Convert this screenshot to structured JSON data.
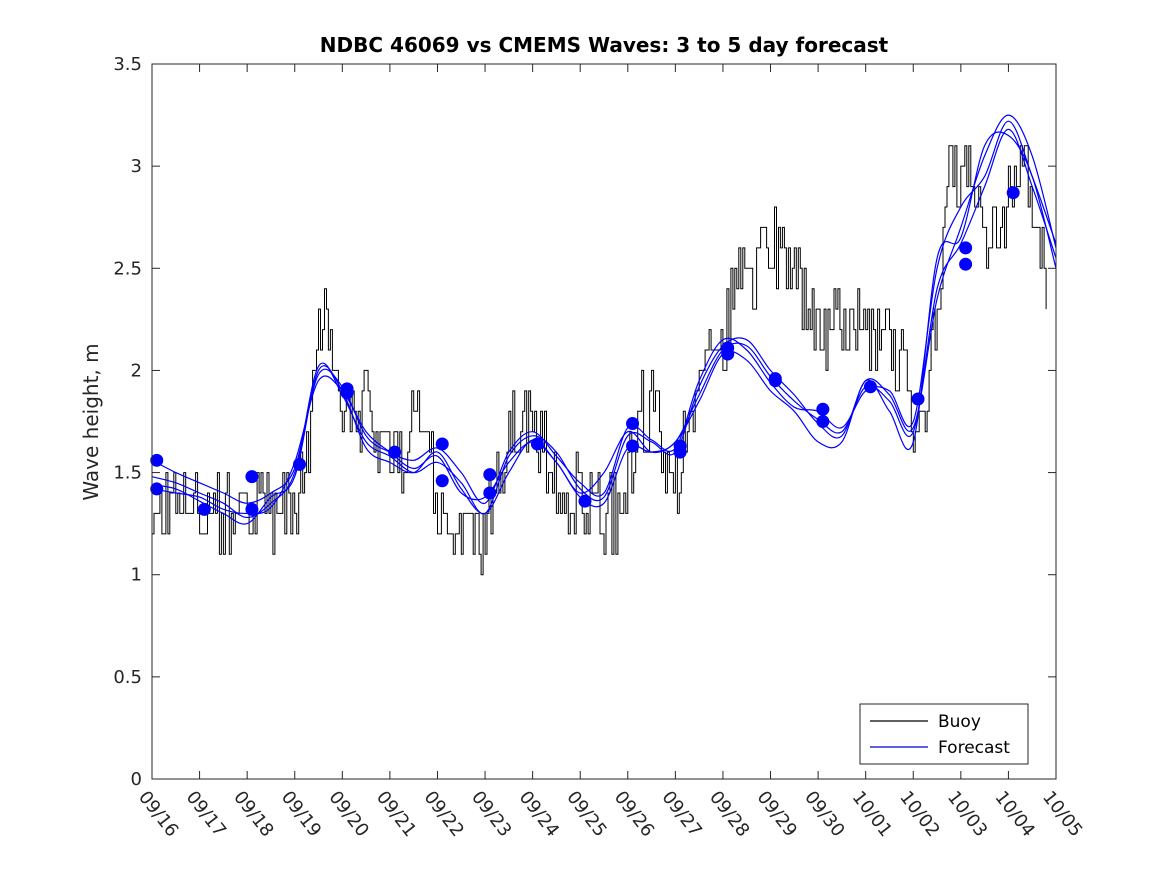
{
  "chart_data": {
    "type": "line",
    "title": "NDBC 46069 vs CMEMS Waves: 3 to 5 day forecast",
    "xlabel": "",
    "ylabel": "Wave height, m",
    "xlim": [
      0,
      19
    ],
    "ylim": [
      0,
      3.5
    ],
    "x_ticks": [
      0,
      1,
      2,
      3,
      4,
      5,
      6,
      7,
      8,
      9,
      10,
      11,
      12,
      13,
      14,
      15,
      16,
      17,
      18,
      19
    ],
    "x_tick_labels": [
      "09/16",
      "09/17",
      "09/18",
      "09/19",
      "09/20",
      "09/21",
      "09/22",
      "09/23",
      "09/24",
      "09/25",
      "09/26",
      "09/27",
      "09/28",
      "09/29",
      "09/30",
      "10/01",
      "10/02",
      "10/03",
      "10/04",
      "10/05"
    ],
    "y_ticks": [
      0,
      0.5,
      1,
      1.5,
      2,
      2.5,
      3,
      3.5
    ],
    "y_tick_labels": [
      "0",
      "0.5",
      "1",
      "1.5",
      "2",
      "2.5",
      "3",
      "3.5"
    ],
    "legend": {
      "position": "bottom-right",
      "entries": [
        {
          "label": "Buoy",
          "color": "#000000"
        },
        {
          "label": "Forecast",
          "color": "#0000cc"
        }
      ]
    },
    "buoy_color": "#000000",
    "forecast_color": "#0000ff",
    "buoy_anchors": {
      "x": [
        0,
        0.1,
        0.2,
        0.5,
        1,
        1.5,
        2,
        2.5,
        3,
        3.3,
        3.6,
        3.8,
        4,
        4.3,
        4.7,
        5,
        5.3,
        5.6,
        5.8,
        6,
        6.3,
        6.6,
        7,
        7.3,
        7.6,
        8,
        8.2,
        8.5,
        8.8,
        9,
        9.3,
        9.6,
        9.9,
        10.2,
        10.5,
        10.8,
        11,
        11.3,
        11.6,
        12,
        12.3,
        12.6,
        12.9,
        13.2,
        13.5,
        13.8,
        14,
        14.3,
        14.6,
        14.9,
        15.2,
        15.5,
        15.8,
        16,
        16.3,
        16.6,
        16.8,
        17,
        17.3,
        17.6,
        17.9,
        18.2,
        18.5,
        18.8
      ],
      "y": [
        1.3,
        1.2,
        1.3,
        1.4,
        1.35,
        1.3,
        1.3,
        1.3,
        1.3,
        1.7,
        2.4,
        2.2,
        1.9,
        1.85,
        1.7,
        1.6,
        1.55,
        1.8,
        1.6,
        1.3,
        1.2,
        1.3,
        1.2,
        1.5,
        1.7,
        1.8,
        1.65,
        1.5,
        1.4,
        1.35,
        1.35,
        1.3,
        1.35,
        1.8,
        1.85,
        1.6,
        1.45,
        1.8,
        2.0,
        2.1,
        2.5,
        2.5,
        2.6,
        2.55,
        2.5,
        2.35,
        2.1,
        2.2,
        2.25,
        2.2,
        2.2,
        2.15,
        2.0,
        1.7,
        1.9,
        2.6,
        3.0,
        2.9,
        2.85,
        2.6,
        2.75,
        3.1,
        2.8,
        2.5
      ]
    },
    "forecast_series": [
      {
        "name": "Forecast run 1",
        "x": [
          0,
          0.5,
          1,
          1.5,
          2,
          2.5,
          3,
          3.5,
          4,
          4.5,
          5,
          5.5,
          6,
          6.5,
          7,
          7.5,
          8,
          8.5,
          9,
          9.5,
          10,
          10.5,
          11,
          11.5,
          12,
          12.5,
          13,
          13.5,
          14,
          14.5,
          15,
          15.5,
          16,
          16.5,
          17,
          17.5,
          18,
          18.5,
          19
        ],
        "y": [
          1.42,
          1.4,
          1.38,
          1.32,
          1.3,
          1.33,
          1.55,
          1.95,
          1.9,
          1.7,
          1.6,
          1.52,
          1.58,
          1.4,
          1.38,
          1.55,
          1.65,
          1.55,
          1.38,
          1.35,
          1.62,
          1.6,
          1.65,
          1.88,
          2.1,
          2.12,
          1.97,
          1.85,
          1.76,
          1.7,
          1.92,
          1.85,
          1.7,
          2.4,
          2.62,
          2.9,
          3.18,
          2.9,
          2.55
        ]
      },
      {
        "name": "Forecast run 2",
        "x": [
          0,
          0.5,
          1,
          1.5,
          2,
          2.5,
          3,
          3.5,
          4,
          4.5,
          5,
          5.5,
          6,
          6.5,
          7,
          7.5,
          8,
          8.5,
          9,
          9.5,
          10,
          10.5,
          11,
          11.5,
          12,
          12.5,
          13,
          13.5,
          14,
          14.5,
          15,
          15.5,
          16,
          16.5,
          17,
          17.5,
          18,
          18.5,
          19
        ],
        "y": [
          1.56,
          1.5,
          1.45,
          1.4,
          1.35,
          1.4,
          1.52,
          1.98,
          1.92,
          1.68,
          1.6,
          1.56,
          1.62,
          1.5,
          1.35,
          1.6,
          1.7,
          1.58,
          1.45,
          1.4,
          1.72,
          1.66,
          1.62,
          1.95,
          2.15,
          2.1,
          1.94,
          1.82,
          1.8,
          1.72,
          1.9,
          1.9,
          1.75,
          2.5,
          2.8,
          2.95,
          3.22,
          2.95,
          2.62
        ]
      },
      {
        "name": "Forecast run 3",
        "x": [
          0,
          0.5,
          1,
          1.5,
          2,
          2.5,
          3,
          3.5,
          4,
          4.5,
          5,
          5.5,
          6,
          6.5,
          7,
          7.5,
          8,
          8.5,
          9,
          9.5,
          10,
          10.5,
          11,
          11.5,
          12,
          12.5,
          13,
          13.5,
          14,
          14.5,
          15,
          15.5,
          16,
          16.5,
          17,
          17.5,
          18,
          18.5,
          19
        ],
        "y": [
          1.48,
          1.45,
          1.4,
          1.35,
          1.28,
          1.35,
          1.5,
          2.02,
          1.88,
          1.65,
          1.58,
          1.5,
          1.55,
          1.45,
          1.3,
          1.58,
          1.68,
          1.6,
          1.42,
          1.38,
          1.68,
          1.65,
          1.6,
          1.92,
          2.12,
          2.15,
          2.0,
          1.88,
          1.74,
          1.68,
          1.95,
          1.88,
          1.72,
          2.35,
          2.7,
          3.05,
          3.25,
          3.05,
          2.6
        ]
      },
      {
        "name": "Forecast run 4",
        "x": [
          0,
          0.5,
          1,
          1.5,
          2,
          2.5,
          3,
          3.5,
          4,
          4.5,
          5,
          5.5,
          6,
          6.5,
          7,
          7.5,
          8,
          8.5,
          9,
          9.5,
          10,
          10.5,
          11,
          11.5,
          12,
          12.5,
          13,
          13.5,
          14,
          14.5,
          15,
          15.5,
          16,
          16.5,
          17,
          17.5,
          18,
          18.5,
          19
        ],
        "y": [
          1.44,
          1.42,
          1.36,
          1.3,
          1.25,
          1.38,
          1.48,
          2.0,
          1.9,
          1.62,
          1.55,
          1.5,
          1.6,
          1.42,
          1.3,
          1.5,
          1.66,
          1.55,
          1.4,
          1.5,
          1.7,
          1.6,
          1.65,
          1.85,
          2.08,
          2.05,
          1.9,
          1.8,
          1.65,
          1.65,
          1.95,
          1.8,
          1.65,
          2.55,
          2.65,
          3.1,
          3.15,
          2.95,
          2.5
        ]
      }
    ],
    "forecast_markers": {
      "x": [
        0.1,
        0.1,
        1.1,
        2.1,
        2.1,
        3.1,
        4.1,
        4.1,
        5.1,
        6.1,
        6.1,
        7.1,
        7.1,
        8.1,
        9.1,
        10.1,
        10.1,
        11.1,
        11.1,
        12.1,
        12.1,
        13.1,
        13.1,
        14.1,
        14.1,
        15.1,
        16.1,
        17.1,
        17.1,
        18.1
      ],
      "y": [
        1.56,
        1.42,
        1.32,
        1.48,
        1.32,
        1.54,
        1.91,
        1.89,
        1.6,
        1.64,
        1.46,
        1.49,
        1.4,
        1.64,
        1.36,
        1.74,
        1.63,
        1.63,
        1.6,
        2.11,
        2.08,
        1.96,
        1.95,
        1.81,
        1.75,
        1.92,
        1.86,
        2.6,
        2.52,
        2.87
      ]
    }
  }
}
